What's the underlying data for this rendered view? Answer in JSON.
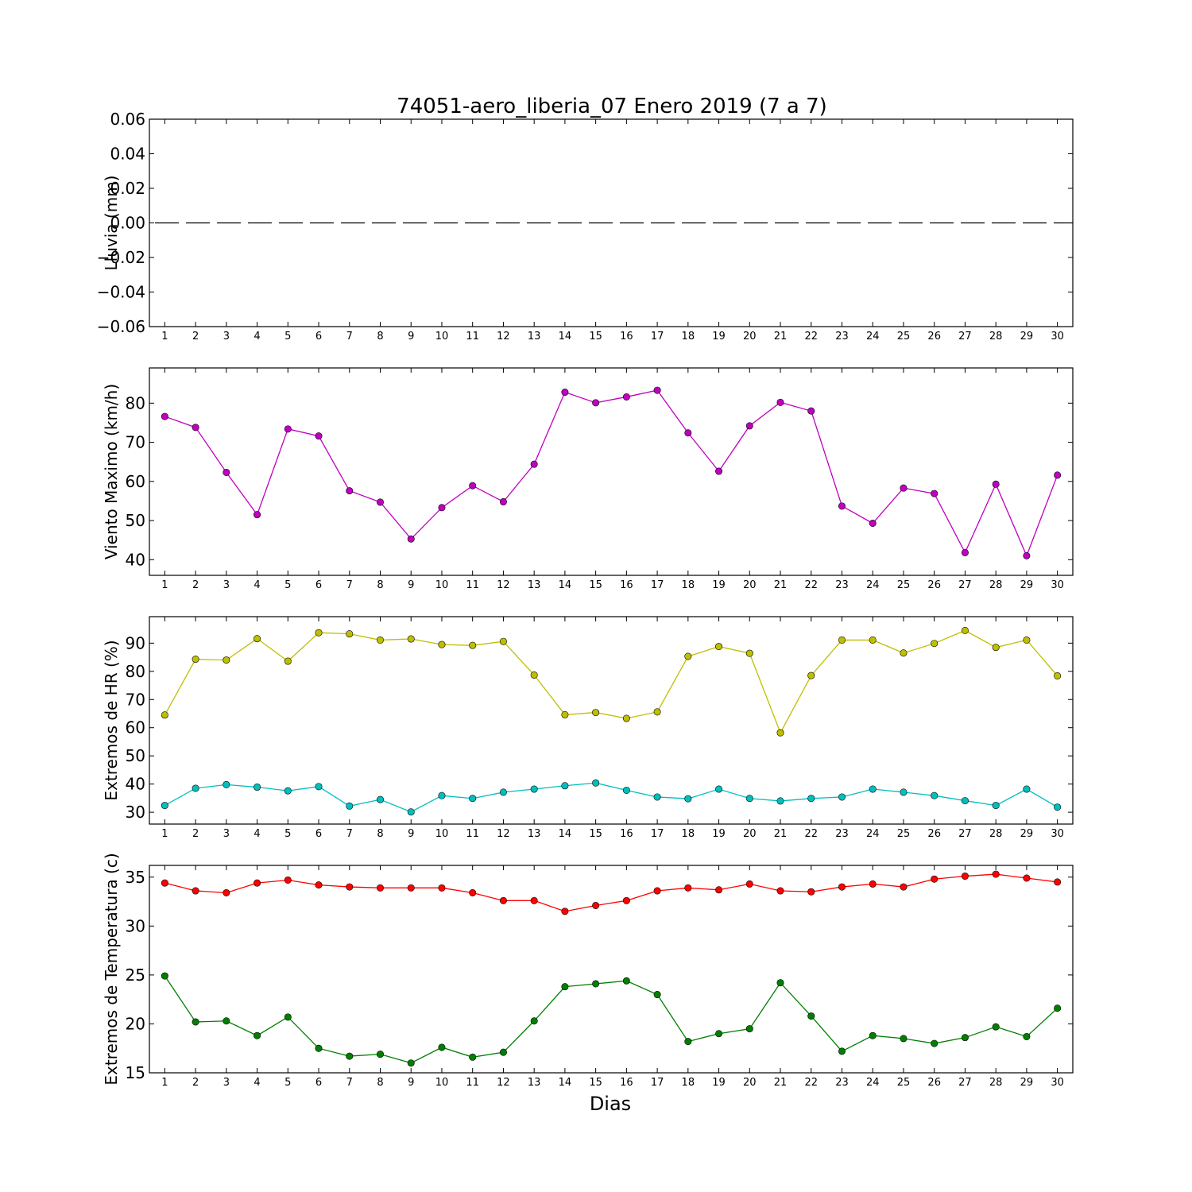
{
  "chart_data": {
    "title": "74051-aero_liberia_07 Enero 2019  (7 a 7)",
    "xlabel": "Dias",
    "x": [
      1,
      2,
      3,
      4,
      5,
      6,
      7,
      8,
      9,
      10,
      11,
      12,
      13,
      14,
      15,
      16,
      17,
      18,
      19,
      20,
      21,
      22,
      23,
      24,
      25,
      26,
      27,
      28,
      29,
      30
    ],
    "xlim": [
      0.5,
      30.5
    ],
    "panels": [
      {
        "type": "line",
        "ylabel": "Lluvia (mm)",
        "ylim": [
          -0.06,
          0.06
        ],
        "yticks": [
          -0.06,
          -0.04,
          -0.02,
          0.0,
          0.02,
          0.04,
          0.06
        ],
        "ytick_labels": [
          "−0.06",
          "−0.04",
          "−0.02",
          "0.00",
          "0.02",
          "0.04",
          "0.06"
        ],
        "series": [
          {
            "color": "#000000",
            "style": "dashed",
            "marker": false,
            "values": [
              0,
              0,
              0,
              0,
              0,
              0,
              0,
              0,
              0,
              0,
              0,
              0,
              0,
              0,
              0,
              0,
              0,
              0,
              0,
              0,
              0,
              0,
              0,
              0,
              0,
              0,
              0,
              0,
              0,
              0
            ]
          }
        ]
      },
      {
        "type": "line",
        "ylabel": "Viento Maximo (km/h)",
        "ylim": [
          36,
          89
        ],
        "yticks": [
          40,
          50,
          60,
          70,
          80
        ],
        "ytick_labels": [
          "40",
          "50",
          "60",
          "70",
          "80"
        ],
        "series": [
          {
            "color": "#bf00bf",
            "style": "solid",
            "marker": true,
            "values": [
              76.6,
              73.8,
              62.3,
              51.5,
              73.4,
              71.6,
              57.6,
              54.7,
              45.3,
              53.3,
              58.9,
              54.8,
              64.4,
              82.8,
              80.1,
              81.6,
              83.3,
              72.4,
              62.6,
              74.2,
              80.2,
              78.0,
              53.7,
              49.3,
              58.3,
              56.9,
              41.8,
              59.3,
              41.0,
              61.6
            ]
          }
        ]
      },
      {
        "type": "line",
        "ylabel": "Extremos de HR (%)",
        "ylim": [
          25.8,
          99.4
        ],
        "yticks": [
          30,
          40,
          50,
          60,
          70,
          80,
          90
        ],
        "ytick_labels": [
          "30",
          "40",
          "50",
          "60",
          "70",
          "80",
          "90"
        ],
        "series": [
          {
            "color": "#bfbf00",
            "style": "solid",
            "marker": true,
            "values": [
              64.5,
              84.3,
              84.0,
              91.6,
              83.6,
              93.7,
              93.3,
              91.1,
              91.5,
              89.5,
              89.2,
              90.6,
              78.7,
              64.6,
              65.4,
              63.3,
              65.6,
              85.3,
              88.8,
              86.4,
              58.2,
              78.5,
              91.1,
              91.1,
              86.5,
              89.9,
              94.5,
              88.5,
              91.1,
              78.4
            ]
          },
          {
            "color": "#00bfbf",
            "style": "solid",
            "marker": true,
            "values": [
              32.4,
              38.5,
              39.8,
              38.9,
              37.6,
              39.1,
              32.2,
              34.5,
              30.1,
              35.9,
              34.9,
              37.1,
              38.2,
              39.4,
              40.4,
              37.8,
              35.4,
              34.8,
              38.2,
              34.9,
              34.0,
              34.9,
              35.4,
              38.2,
              37.1,
              35.9,
              34.1,
              32.4,
              38.2,
              31.8
            ]
          }
        ]
      },
      {
        "type": "line",
        "ylabel": "Extremos de Temperatura (c)",
        "ylim": [
          15,
          36.2
        ],
        "yticks": [
          15,
          20,
          25,
          30,
          35
        ],
        "ytick_labels": [
          "15",
          "20",
          "25",
          "30",
          "35"
        ],
        "series": [
          {
            "color": "#ff0000",
            "style": "solid",
            "marker": true,
            "values": [
              34.4,
              33.6,
              33.4,
              34.4,
              34.7,
              34.2,
              34.0,
              33.9,
              33.9,
              33.9,
              33.4,
              32.6,
              32.6,
              31.5,
              32.1,
              32.6,
              33.6,
              33.9,
              33.7,
              34.3,
              33.6,
              33.5,
              34.0,
              34.3,
              34.0,
              34.8,
              35.1,
              35.3,
              34.9,
              34.5
            ]
          },
          {
            "color": "#007f00",
            "style": "solid",
            "marker": true,
            "values": [
              24.9,
              20.2,
              20.3,
              18.8,
              20.7,
              17.5,
              16.7,
              16.9,
              16.0,
              17.6,
              16.6,
              17.1,
              20.3,
              23.8,
              24.1,
              24.4,
              23.0,
              18.2,
              19.0,
              19.5,
              24.2,
              20.8,
              17.2,
              18.8,
              18.5,
              18.0,
              18.6,
              19.7,
              18.7,
              21.6
            ]
          }
        ]
      }
    ]
  }
}
